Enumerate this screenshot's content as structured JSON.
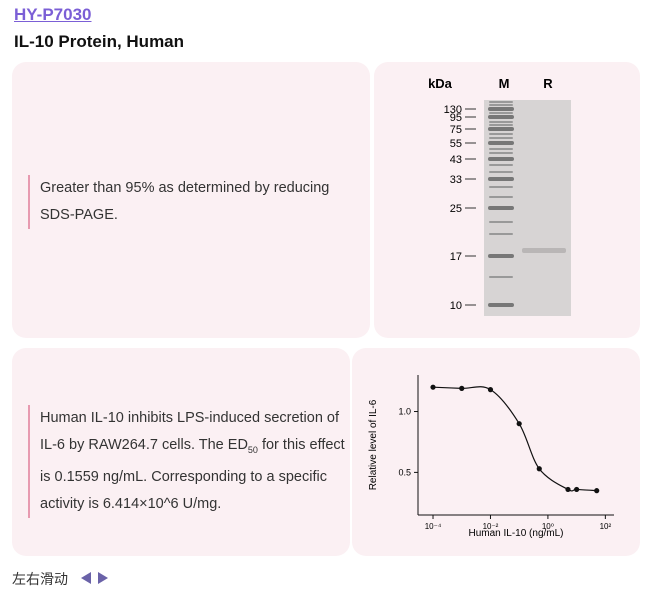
{
  "header": {
    "product_id": "HY-P7030",
    "title": "IL-10 Protein, Human"
  },
  "purity": {
    "text": "Greater than 95% as determined by reducing SDS-PAGE.",
    "gel": {
      "unit": "kDa",
      "lanes": [
        "M",
        "R"
      ],
      "markers": [
        130,
        95,
        75,
        55,
        43,
        33,
        25,
        17,
        10
      ]
    }
  },
  "activity": {
    "text_before": "Human IL-10 inhibits LPS-induced secretion of IL-6 by RAW264.7 cells. The ED",
    "subscript": "50",
    "text_after": " for this effect is 0.1559 ng/mL. Corresponding to a specific activity is 6.414×10^6 U/mg.",
    "chart": {
      "type": "scatter",
      "xlabel": "Human IL-10 (ng/mL)",
      "ylabel": "Relative level of IL-6",
      "x": [
        0.0001,
        0.001,
        0.01,
        0.1,
        0.5,
        5,
        10,
        50
      ],
      "values": [
        1.2,
        1.19,
        1.18,
        0.9,
        0.53,
        0.36,
        0.36,
        0.35
      ],
      "xscale": "log",
      "xlim": [
        3e-05,
        200
      ],
      "ylim": [
        0.15,
        1.3
      ],
      "xticks": [
        {
          "value": 0.0001,
          "label": "10⁻⁴"
        },
        {
          "value": 0.01,
          "label": "10⁻²"
        },
        {
          "value": 1,
          "label": "10⁰"
        },
        {
          "value": 100,
          "label": "10²"
        }
      ],
      "yticks": [
        0.5,
        {
          "value": 1,
          "label": "1.0"
        }
      ],
      "color": "#111111"
    }
  },
  "footer": {
    "hint": "左右滑动"
  }
}
